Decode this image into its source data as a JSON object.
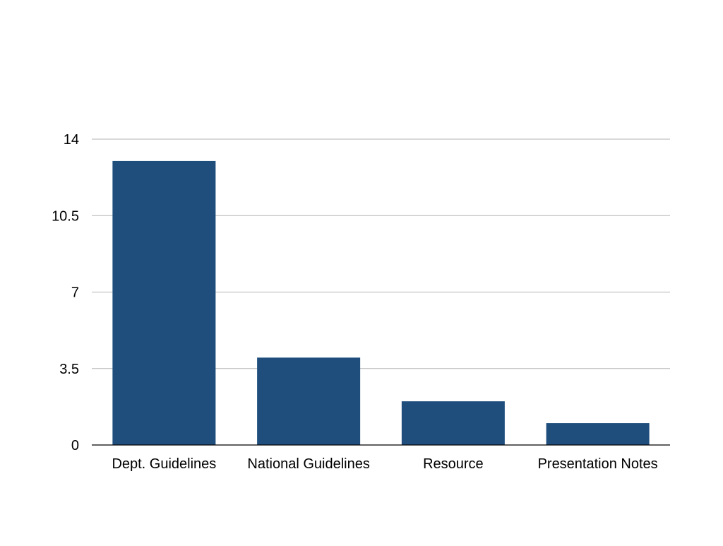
{
  "chart_data": {
    "type": "bar",
    "title": "",
    "xlabel": "",
    "ylabel": "",
    "categories": [
      "Dept. Guidelines",
      "National Guidelines",
      "Resource",
      "Presentation Notes"
    ],
    "series": [
      {
        "values": [
          13,
          4,
          2,
          1
        ]
      }
    ],
    "ylim": [
      0,
      14
    ],
    "yticks": [
      0,
      3.5,
      7,
      10.5,
      14
    ],
    "ytick_labels": [
      "0",
      "3.5",
      "7",
      "10.5",
      "14"
    ],
    "grid": true,
    "legend": "none",
    "colors": {
      "bar": "#1f4e7d",
      "grid": "#b3b3b3",
      "axis": "#000000"
    }
  }
}
